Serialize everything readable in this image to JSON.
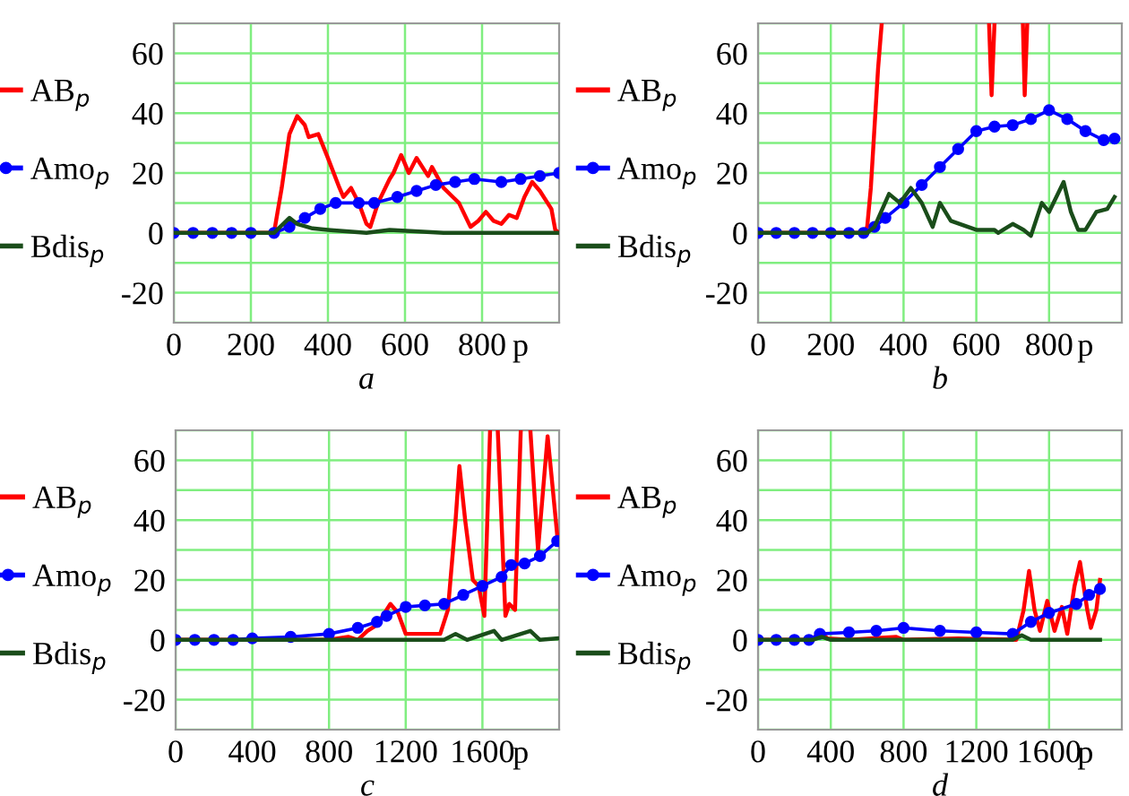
{
  "chart_data": [
    {
      "type": "line",
      "title": "a",
      "xlabel": "p",
      "xlim": [
        0,
        1000
      ],
      "ylim": [
        -30,
        70
      ],
      "xticks": [
        0,
        200,
        400,
        600,
        800
      ],
      "yticks": [
        {
          "value": -30,
          "label": null
        },
        -20,
        {
          "value": -10,
          "label": null
        },
        0,
        {
          "value": 10,
          "label": null
        },
        20,
        {
          "value": 30,
          "label": null
        },
        40,
        {
          "value": 50,
          "label": null
        },
        60,
        {
          "value": 70,
          "label": null
        }
      ],
      "grid": true,
      "legend": "left",
      "series": [
        {
          "name": "AB$_{p}$",
          "color": "#ff0000",
          "marker": "none",
          "x": [
            0,
            260,
            280,
            300,
            320,
            340,
            350,
            375,
            400,
            430,
            440,
            460,
            480,
            500,
            510,
            530,
            560,
            570,
            590,
            610,
            630,
            660,
            670,
            700,
            740,
            770,
            790,
            810,
            830,
            850,
            870,
            890,
            910,
            930,
            950,
            980,
            990,
            1000
          ],
          "values": [
            0,
            0,
            15,
            33,
            39,
            36,
            32,
            33,
            25,
            15,
            12,
            15,
            10,
            3,
            2,
            10,
            18,
            20,
            26,
            20,
            25,
            19,
            22,
            15,
            10,
            2,
            4,
            7,
            4,
            3,
            6,
            5,
            12,
            17,
            14,
            8,
            1,
            0
          ]
        },
        {
          "name": "Amo$_{p}$",
          "color": "#0000ff",
          "marker": "circle",
          "x": [
            0,
            50,
            100,
            150,
            200,
            260,
            300,
            340,
            380,
            420,
            480,
            520,
            580,
            630,
            680,
            730,
            780,
            850,
            900,
            950,
            1000
          ],
          "values": [
            0,
            0,
            0,
            0,
            0,
            0,
            2,
            5,
            8,
            10,
            10,
            10,
            12,
            14,
            16,
            17,
            18,
            17,
            18,
            19,
            20
          ]
        },
        {
          "name": "Bdis$_{p}$",
          "color": "#1a4d1a",
          "marker": "none",
          "x": [
            0,
            260,
            300,
            320,
            360,
            400,
            500,
            560,
            700,
            1000
          ],
          "values": [
            0,
            0,
            5,
            3,
            1.5,
            1,
            0,
            1,
            0,
            0
          ]
        }
      ]
    },
    {
      "type": "line",
      "title": "b",
      "xlabel": "p",
      "xlim": [
        0,
        1000
      ],
      "ylim": [
        -30,
        70
      ],
      "xticks": [
        0,
        200,
        400,
        600,
        800
      ],
      "yticks": [
        {
          "value": -30,
          "label": null
        },
        -20,
        {
          "value": -10,
          "label": null
        },
        0,
        {
          "value": 10,
          "label": null
        },
        20,
        {
          "value": 30,
          "label": null
        },
        40,
        {
          "value": 50,
          "label": null
        },
        60,
        {
          "value": 70,
          "label": null
        }
      ],
      "grid": true,
      "legend": "left",
      "series": [
        {
          "name": "AB$_{p}$",
          "color": "#ff0000",
          "marker": "none",
          "x": [
            0,
            290,
            300,
            310,
            320,
            330,
            340,
            500,
            635,
            642,
            650,
            700,
            728,
            733,
            740
          ],
          "values": [
            0,
            0,
            2,
            15,
            35,
            55,
            70,
            null,
            70,
            46,
            70,
            null,
            70,
            46,
            70
          ]
        },
        {
          "name": "Amo$_{p}$",
          "color": "#0000ff",
          "marker": "circle",
          "x": [
            0,
            50,
            100,
            150,
            200,
            250,
            290,
            320,
            350,
            400,
            450,
            500,
            550,
            600,
            650,
            700,
            750,
            800,
            850,
            900,
            950,
            980
          ],
          "values": [
            0,
            0,
            0,
            0,
            0,
            0,
            0,
            2,
            5,
            10,
            16,
            22,
            28,
            34,
            35.5,
            36,
            38,
            41,
            38,
            34,
            31,
            31.5
          ]
        },
        {
          "name": "Bdis$_{p}$",
          "color": "#1a4d1a",
          "marker": "none",
          "x": [
            0,
            300,
            320,
            360,
            390,
            420,
            450,
            480,
            500,
            530,
            600,
            650,
            660,
            700,
            730,
            750,
            780,
            800,
            840,
            860,
            880,
            900,
            930,
            960,
            980
          ],
          "values": [
            0,
            0,
            2,
            13,
            10,
            15,
            10,
            2,
            10,
            4,
            1,
            1,
            0,
            3,
            1,
            -1,
            10,
            7,
            17,
            7,
            1,
            1,
            7,
            8,
            12
          ]
        }
      ]
    },
    {
      "type": "line",
      "title": "c",
      "xlabel": "p",
      "xlim": [
        0,
        2000
      ],
      "ylim": [
        -30,
        70
      ],
      "xticks": [
        0,
        400,
        800,
        1200,
        1600
      ],
      "yticks": [
        {
          "value": -30,
          "label": null
        },
        -20,
        {
          "value": -10,
          "label": null
        },
        0,
        {
          "value": 10,
          "label": null
        },
        20,
        {
          "value": 30,
          "label": null
        },
        40,
        {
          "value": 50,
          "label": null
        },
        60,
        {
          "value": 70,
          "label": null
        }
      ],
      "grid": true,
      "legend": "left",
      "series": [
        {
          "name": "AB$_{p}$",
          "color": "#ff0000",
          "marker": "none",
          "x": [
            0,
            800,
            900,
            950,
            1000,
            1050,
            1120,
            1160,
            1200,
            1300,
            1380,
            1420,
            1460,
            1480,
            1510,
            1550,
            1580,
            1610,
            1640,
            1660,
            1680,
            1720,
            1740,
            1770,
            1800,
            1825,
            1850,
            1890,
            1940,
            1960,
            1990
          ],
          "values": [
            0,
            0,
            1,
            0,
            3,
            5,
            12,
            9,
            2,
            2,
            2,
            10,
            40,
            58,
            40,
            20,
            18,
            8,
            70,
            null,
            70,
            8,
            12,
            10,
            70,
            null,
            70,
            30,
            68,
            55,
            35
          ]
        },
        {
          "name": "Amo$_{p}$",
          "color": "#0000ff",
          "marker": "circle",
          "x": [
            0,
            100,
            200,
            300,
            400,
            600,
            800,
            950,
            1050,
            1100,
            1200,
            1300,
            1400,
            1500,
            1600,
            1700,
            1750,
            1820,
            1900,
            1990
          ],
          "values": [
            0,
            0,
            0,
            0,
            0.5,
            1,
            2,
            4,
            6,
            8,
            11,
            11.5,
            12,
            15,
            18,
            21,
            25,
            25.5,
            28,
            33
          ]
        },
        {
          "name": "Bdis$_{p}$",
          "color": "#1a4d1a",
          "marker": "none",
          "x": [
            0,
            1400,
            1460,
            1520,
            1660,
            1700,
            1850,
            1900,
            1990
          ],
          "values": [
            0,
            0,
            2,
            0,
            3,
            0,
            3,
            0,
            0.5
          ]
        }
      ]
    },
    {
      "type": "line",
      "title": "d",
      "xlabel": "p",
      "xlim": [
        0,
        2000
      ],
      "ylim": [
        -30,
        70
      ],
      "xticks": [
        0,
        400,
        800,
        1200,
        1600
      ],
      "yticks": [
        {
          "value": -30,
          "label": null
        },
        -20,
        {
          "value": -10,
          "label": null
        },
        0,
        {
          "value": 10,
          "label": null
        },
        20,
        {
          "value": 30,
          "label": null
        },
        40,
        {
          "value": 50,
          "label": null
        },
        60,
        {
          "value": 70,
          "label": null
        }
      ],
      "grid": true,
      "legend": "left",
      "series": [
        {
          "name": "AB$_{p}$",
          "color": "#ff0000",
          "marker": "none",
          "x": [
            0,
            300,
            340,
            380,
            500,
            760,
            800,
            1100,
            1420,
            1460,
            1490,
            1520,
            1550,
            1590,
            1630,
            1670,
            1700,
            1740,
            1770,
            1810,
            1830,
            1860,
            1880
          ],
          "values": [
            0,
            0,
            3,
            0.5,
            0,
            1,
            0,
            0.5,
            0,
            10,
            23,
            10,
            3,
            13,
            3,
            11,
            2,
            18,
            26,
            10,
            4,
            10,
            20
          ]
        },
        {
          "name": "Amo$_{p}$",
          "color": "#0000ff",
          "marker": "circle",
          "x": [
            0,
            100,
            200,
            280,
            340,
            500,
            650,
            800,
            1000,
            1200,
            1400,
            1500,
            1600,
            1750,
            1820,
            1880
          ],
          "values": [
            0,
            0,
            0,
            0,
            2,
            2.5,
            3,
            4,
            3,
            2.5,
            2,
            6,
            9,
            12,
            15,
            17
          ]
        },
        {
          "name": "Bdis$_{p}$",
          "color": "#1a4d1a",
          "marker": "none",
          "x": [
            0,
            300,
            350,
            400,
            1400,
            1450,
            1500,
            1880
          ],
          "values": [
            0,
            0,
            1,
            0,
            0,
            1.5,
            0,
            0
          ]
        }
      ]
    }
  ]
}
